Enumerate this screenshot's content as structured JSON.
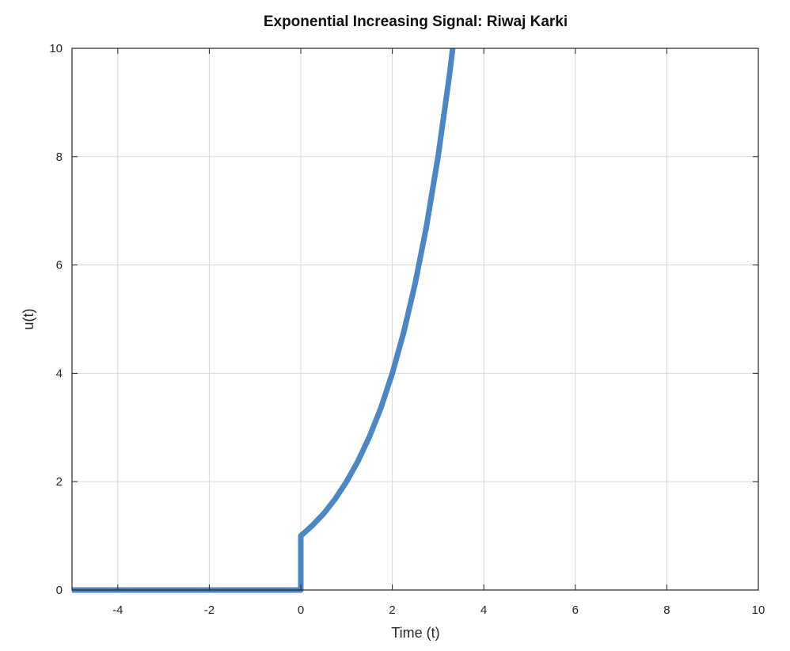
{
  "chart_data": {
    "type": "line",
    "title": "Exponential Increasing Signal: Riwaj Karki",
    "xlabel": "Time (t)",
    "ylabel": "u(t)",
    "xlim": [
      -5,
      10
    ],
    "ylim": [
      0,
      10
    ],
    "xticks": [
      -4,
      -2,
      0,
      2,
      4,
      6,
      8,
      10
    ],
    "yticks": [
      0,
      2,
      4,
      6,
      8,
      10
    ],
    "grid": true,
    "series": [
      {
        "color": "#3d7dc0",
        "x": [
          -5,
          -4,
          -3,
          -2,
          -1,
          0,
          0,
          0.25,
          0.5,
          0.75,
          1,
          1.25,
          1.5,
          1.75,
          2,
          2.25,
          2.5,
          2.75,
          3,
          3.25,
          3.32
        ],
        "y": [
          0,
          0,
          0,
          0,
          0,
          0,
          1,
          1.19,
          1.41,
          1.68,
          2,
          2.38,
          2.83,
          3.36,
          4,
          4.76,
          5.66,
          6.73,
          8,
          9.51,
          10
        ]
      }
    ]
  }
}
